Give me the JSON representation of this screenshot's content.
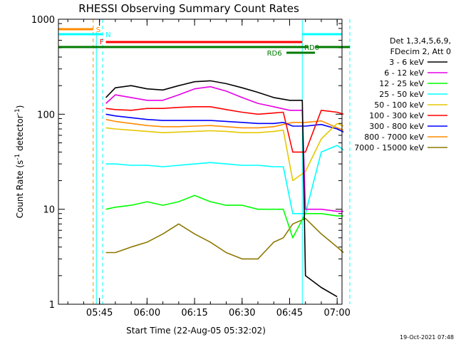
{
  "chart_data": {
    "type": "line",
    "title": "RHESSI Observing Summary Count Rates",
    "xlabel": "Start Time (22-Aug-05 05:32:02)",
    "ylabel_main": "Count Rate (s",
    "ylabel_sup1": "-1",
    "ylabel_mid": " detector",
    "ylabel_sup2": "-1",
    "ylabel_end": ")",
    "y_scale": "log",
    "ylim": [
      1,
      1000
    ],
    "x_ticks": [
      "05:45",
      "06:00",
      "06:15",
      "06:30",
      "06:45",
      "07:00"
    ],
    "y_ticks": [
      "1",
      "10",
      "100",
      "1000"
    ],
    "legend_header": [
      "Det 1,3,4,5,6,9,",
      "FDecim 2, Att 0"
    ],
    "legend_position": "right",
    "flag_labels": {
      "saa": "S",
      "night": "N",
      "flare": "F",
      "rd0": "RD0",
      "rd6": "RD6"
    },
    "series": [
      {
        "name": "3 - 6 keV",
        "color": "#000000",
        "x": [
          "05:47",
          "05:50",
          "05:55",
          "06:00",
          "06:05",
          "06:10",
          "06:15",
          "06:20",
          "06:25",
          "06:30",
          "06:35",
          "06:40",
          "06:45",
          "06:49",
          "06:50",
          "06:55",
          "07:00"
        ],
        "y": [
          150,
          190,
          200,
          185,
          180,
          200,
          220,
          225,
          210,
          190,
          170,
          150,
          140,
          140,
          2,
          1.5,
          1.2
        ]
      },
      {
        "name": "6 - 12 keV",
        "color": "#e600e6",
        "x": [
          "05:47",
          "05:50",
          "05:55",
          "06:00",
          "06:05",
          "06:10",
          "06:15",
          "06:20",
          "06:25",
          "06:30",
          "06:35",
          "06:40",
          "06:45",
          "06:49",
          "06:50",
          "06:55",
          "07:00",
          "07:02"
        ],
        "y": [
          130,
          160,
          150,
          140,
          140,
          160,
          185,
          195,
          175,
          150,
          130,
          120,
          110,
          110,
          10,
          10,
          9.5,
          9.5
        ]
      },
      {
        "name": "12 - 25 keV",
        "color": "#00ff00",
        "x": [
          "05:47",
          "05:50",
          "05:55",
          "06:00",
          "06:05",
          "06:10",
          "06:15",
          "06:20",
          "06:25",
          "06:30",
          "06:35",
          "06:40",
          "06:43",
          "06:46",
          "06:50",
          "06:55",
          "07:00",
          "07:02"
        ],
        "y": [
          10,
          10.5,
          11,
          12,
          11,
          12,
          14,
          12,
          11,
          11,
          10,
          10,
          10,
          5,
          9,
          9,
          8.5,
          8.5
        ]
      },
      {
        "name": "25 - 50 keV",
        "color": "#00ffff",
        "x": [
          "05:47",
          "05:50",
          "05:55",
          "06:00",
          "06:05",
          "06:10",
          "06:15",
          "06:20",
          "06:25",
          "06:30",
          "06:35",
          "06:40",
          "06:43",
          "06:46",
          "06:50",
          "06:55",
          "07:00",
          "07:02"
        ],
        "y": [
          30,
          30,
          29,
          29,
          28,
          29,
          30,
          31,
          30,
          29,
          29,
          28,
          28,
          9,
          9,
          40,
          47,
          42
        ]
      },
      {
        "name": "50 - 100 keV",
        "color": "#e6c800",
        "x": [
          "05:47",
          "05:50",
          "05:55",
          "06:00",
          "06:05",
          "06:10",
          "06:15",
          "06:20",
          "06:25",
          "06:30",
          "06:35",
          "06:40",
          "06:43",
          "06:46",
          "06:50",
          "06:55",
          "07:00",
          "07:02"
        ],
        "y": [
          72,
          70,
          68,
          66,
          64,
          65,
          66,
          67,
          66,
          64,
          64,
          66,
          68,
          20,
          25,
          55,
          80,
          75
        ]
      },
      {
        "name": "100 - 300 keV",
        "color": "#ff0000",
        "x": [
          "05:47",
          "05:50",
          "05:55",
          "06:00",
          "06:05",
          "06:10",
          "06:15",
          "06:20",
          "06:25",
          "06:30",
          "06:35",
          "06:40",
          "06:43",
          "06:46",
          "06:50",
          "06:55",
          "07:00",
          "07:02"
        ],
        "y": [
          115,
          112,
          110,
          115,
          115,
          118,
          120,
          120,
          112,
          105,
          100,
          103,
          105,
          40,
          40,
          110,
          105,
          100
        ]
      },
      {
        "name": "300 - 800 keV",
        "color": "#0000ff",
        "x": [
          "05:47",
          "05:50",
          "05:55",
          "06:00",
          "06:05",
          "06:10",
          "06:15",
          "06:20",
          "06:25",
          "06:30",
          "06:35",
          "06:40",
          "06:43",
          "06:46",
          "06:50",
          "06:55",
          "07:00",
          "07:02"
        ],
        "y": [
          100,
          96,
          92,
          88,
          86,
          86,
          86,
          86,
          84,
          82,
          80,
          80,
          82,
          75,
          75,
          78,
          70,
          65
        ]
      },
      {
        "name": "800 - 7000 keV",
        "color": "#ff8c00",
        "x": [
          "05:47",
          "05:50",
          "05:55",
          "06:00",
          "06:05",
          "06:10",
          "06:15",
          "06:20",
          "06:25",
          "06:30",
          "06:35",
          "06:40",
          "06:43",
          "06:46",
          "06:50",
          "06:55",
          "07:00",
          "07:02"
        ],
        "y": [
          88,
          84,
          80,
          76,
          74,
          74,
          75,
          76,
          74,
          72,
          72,
          74,
          78,
          82,
          82,
          85,
          72,
          68
        ]
      },
      {
        "name": "7000 - 15000 keV",
        "color": "#8c7800",
        "x": [
          "05:47",
          "05:50",
          "05:55",
          "06:00",
          "06:05",
          "06:10",
          "06:15",
          "06:20",
          "06:25",
          "06:30",
          "06:35",
          "06:40",
          "06:43",
          "06:46",
          "06:50",
          "06:55",
          "07:00",
          "07:02"
        ],
        "y": [
          3.5,
          3.5,
          4,
          4.5,
          5.5,
          7,
          5.5,
          4.5,
          3.5,
          3,
          3,
          4.5,
          5,
          7,
          8,
          5.5,
          4,
          3.5
        ]
      }
    ]
  },
  "footer_timestamp": "19-Oct-2021 07:48"
}
